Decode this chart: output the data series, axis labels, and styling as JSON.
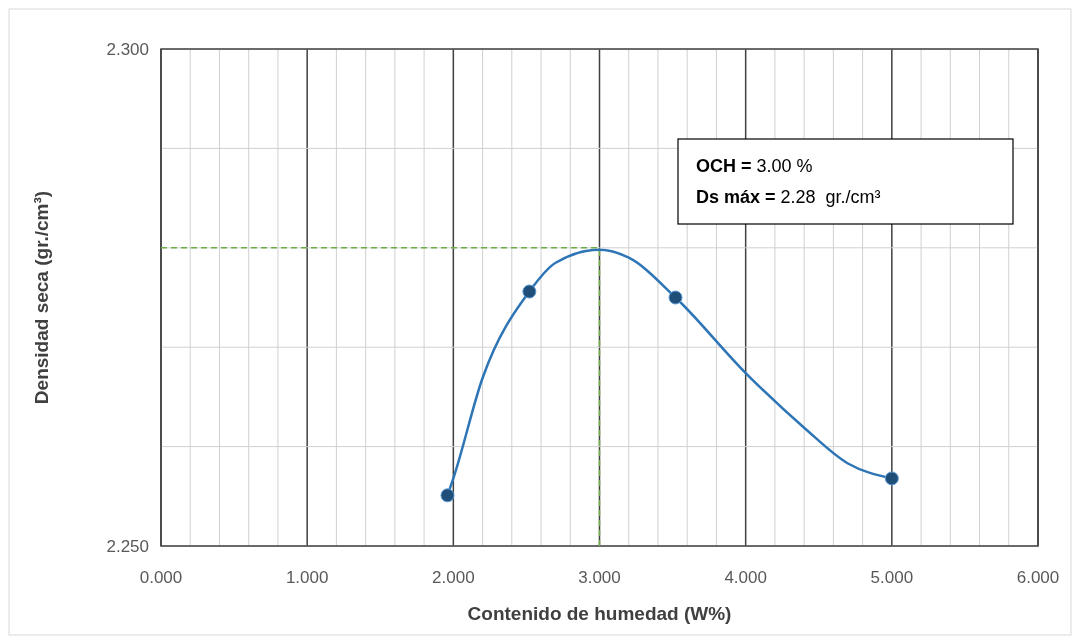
{
  "chart_data": {
    "type": "line",
    "xlabel": "Contenido de humedad (W%)",
    "ylabel": "Densidad seca (gr./cm³)",
    "xlim": [
      0,
      6
    ],
    "ylim": [
      2.25,
      2.3
    ],
    "xticks": [
      {
        "value": 0,
        "label": "0.000"
      },
      {
        "value": 0.2,
        "label": null
      },
      {
        "value": 0.4,
        "label": null
      },
      {
        "value": 0.6,
        "label": null
      },
      {
        "value": 0.8,
        "label": null
      },
      {
        "value": 1,
        "label": "1.000"
      },
      {
        "value": 1.2,
        "label": null
      },
      {
        "value": 1.4,
        "label": null
      },
      {
        "value": 1.6,
        "label": null
      },
      {
        "value": 1.8,
        "label": null
      },
      {
        "value": 2,
        "label": "2.000"
      },
      {
        "value": 2.2,
        "label": null
      },
      {
        "value": 2.4,
        "label": null
      },
      {
        "value": 2.6,
        "label": null
      },
      {
        "value": 2.8,
        "label": null
      },
      {
        "value": 3,
        "label": "3.000"
      },
      {
        "value": 3.2,
        "label": null
      },
      {
        "value": 3.4,
        "label": null
      },
      {
        "value": 3.6,
        "label": null
      },
      {
        "value": 3.8,
        "label": null
      },
      {
        "value": 4,
        "label": "4.000"
      },
      {
        "value": 4.2,
        "label": null
      },
      {
        "value": 4.4,
        "label": null
      },
      {
        "value": 4.6,
        "label": null
      },
      {
        "value": 4.8,
        "label": null
      },
      {
        "value": 5,
        "label": "5.000"
      },
      {
        "value": 5.2,
        "label": null
      },
      {
        "value": 5.4,
        "label": null
      },
      {
        "value": 5.6,
        "label": null
      },
      {
        "value": 5.8,
        "label": null
      },
      {
        "value": 6,
        "label": "6.000"
      }
    ],
    "yticks": [
      {
        "value": 2.25,
        "label": "2.250"
      },
      {
        "value": 2.26,
        "label": null
      },
      {
        "value": 2.27,
        "label": null
      },
      {
        "value": 2.28,
        "label": null
      },
      {
        "value": 2.29,
        "label": null
      },
      {
        "value": 2.3,
        "label": "2.300"
      }
    ],
    "grid": true,
    "series": [
      {
        "color": "#2e75b6",
        "marker": "none",
        "x": [
          1.96,
          2.0,
          2.2,
          2.52,
          2.7,
          3.0,
          3.2,
          3.52,
          4.0,
          4.4,
          4.7,
          5.0
        ],
        "values": [
          2.2551,
          2.2568,
          2.2669,
          2.2756,
          2.2785,
          2.2798,
          2.279,
          2.275,
          2.2674,
          2.2619,
          2.2583,
          2.2568
        ]
      },
      {
        "type": "scatter",
        "color": "#1f4e79",
        "marker": "circle",
        "x": [
          1.96,
          2.52,
          3.52,
          5.0
        ],
        "values": [
          2.2551,
          2.2756,
          2.275,
          2.2568
        ]
      }
    ],
    "ref_lines": [
      {
        "axis": "y",
        "value": 2.28,
        "color": "#70ad47",
        "line_style": "dashed"
      },
      {
        "axis": "x",
        "value": 3.0,
        "color": "#70ad47",
        "line_style": "dashed"
      }
    ],
    "annotations": [
      "OCH = 3.00 %",
      "Ds máx = 2.28  gr./cm³"
    ]
  }
}
